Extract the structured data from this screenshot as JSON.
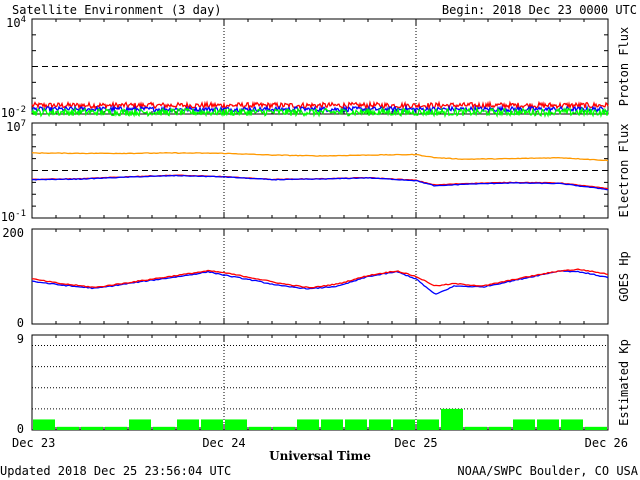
{
  "header": {
    "title": "Satellite Environment (3 day)",
    "begin": "Begin:  2018 Dec 23 0000 UTC"
  },
  "footer": {
    "updated": "Updated 2018 Dec 25 23:56:04 UTC",
    "credit": "NOAA/SWPC Boulder, CO USA"
  },
  "x_axis": {
    "title": "Universal Time",
    "ticks": [
      "Dec 23",
      "Dec 24",
      "Dec 25",
      "Dec 26"
    ]
  },
  "colors": {
    "red": "#ff0000",
    "blue": "#0000ff",
    "green": "#00ff00",
    "orange": "#ff9900",
    "kp_bar": "#00ff00"
  },
  "chart_data": [
    {
      "type": "line",
      "ylabel": "Proton Flux",
      "log_scale": true,
      "ylim": [
        0.01,
        10000
      ],
      "yticks": [
        {
          "base": "10",
          "exp": "4",
          "value": 10000
        },
        {
          "base": "10",
          "exp": "-2",
          "value": 0.01
        }
      ],
      "threshold": 10,
      "x_days": [
        0,
        3
      ],
      "series": [
        {
          "color": "red",
          "level": 0.035,
          "noise": 0.35
        },
        {
          "color": "blue",
          "level": 0.02,
          "noise": 0.3
        },
        {
          "color": "green",
          "level": 0.013,
          "noise": 0.45
        }
      ]
    },
    {
      "type": "line",
      "ylabel": "Electron Flux",
      "log_scale": true,
      "ylim": [
        0.1,
        10000000
      ],
      "yticks": [
        {
          "base": "10",
          "exp": "7",
          "value": 10000000
        },
        {
          "base": "10",
          "exp": "-1",
          "value": 0.1
        }
      ],
      "threshold": 1000,
      "x": [
        0,
        0.25,
        0.5,
        0.75,
        1.0,
        1.25,
        1.5,
        1.75,
        2.0,
        2.1,
        2.25,
        2.5,
        2.75,
        3.0
      ],
      "series": [
        {
          "color": "orange",
          "values": [
            30000,
            28000,
            28000,
            30000,
            28000,
            20000,
            17000,
            20000,
            22000,
            12000,
            9000,
            10000,
            12000,
            7000
          ]
        },
        {
          "color": "red",
          "values": [
            180,
            200,
            300,
            400,
            300,
            180,
            200,
            250,
            150,
            60,
            80,
            100,
            90,
            30
          ]
        },
        {
          "color": "blue",
          "values": [
            170,
            190,
            280,
            370,
            290,
            170,
            190,
            240,
            140,
            50,
            70,
            90,
            80,
            25
          ]
        }
      ]
    },
    {
      "type": "line",
      "ylabel": "GOES Hp",
      "log_scale": false,
      "ylim": [
        0,
        200
      ],
      "yticks": [
        {
          "label": "200",
          "value": 200
        },
        {
          "label": "0",
          "value": 0
        }
      ],
      "x": [
        0,
        0.15,
        0.33,
        0.55,
        0.8,
        0.92,
        1.0,
        1.15,
        1.3,
        1.45,
        1.6,
        1.75,
        1.9,
        2.0,
        2.1,
        2.2,
        2.35,
        2.55,
        2.75,
        2.85,
        3.0
      ],
      "series": [
        {
          "color": "blue",
          "values": [
            90,
            82,
            75,
            88,
            102,
            110,
            103,
            92,
            80,
            74,
            80,
            100,
            110,
            95,
            62,
            80,
            78,
            95,
            112,
            110,
            98
          ]
        },
        {
          "color": "red",
          "values": [
            95,
            85,
            77,
            90,
            105,
            112,
            108,
            97,
            85,
            76,
            85,
            102,
            112,
            100,
            80,
            85,
            80,
            97,
            112,
            115,
            105
          ]
        }
      ]
    },
    {
      "type": "bar",
      "ylabel": "Estimated Kp",
      "ylim": [
        0,
        9
      ],
      "yticks": [
        {
          "label": "9",
          "value": 9
        },
        {
          "label": "0",
          "value": 0
        }
      ],
      "gridlines": [
        2,
        4,
        6,
        8
      ],
      "categories": [
        "Dec 23 00",
        "Dec 23 03",
        "Dec 23 06",
        "Dec 23 09",
        "Dec 23 12",
        "Dec 23 15",
        "Dec 23 18",
        "Dec 23 21",
        "Dec 24 00",
        "Dec 24 03",
        "Dec 24 06",
        "Dec 24 09",
        "Dec 24 12",
        "Dec 24 15",
        "Dec 24 18",
        "Dec 24 21",
        "Dec 25 00",
        "Dec 25 03",
        "Dec 25 06",
        "Dec 25 09",
        "Dec 25 12",
        "Dec 25 15",
        "Dec 25 18",
        "Dec 25 21"
      ],
      "values": [
        1,
        0.3,
        0.3,
        0.3,
        1,
        0.3,
        1,
        1,
        1,
        0.3,
        0.3,
        1,
        1,
        1,
        1,
        1,
        1,
        2,
        0.3,
        0.3,
        1,
        1,
        1,
        0.3
      ]
    }
  ]
}
